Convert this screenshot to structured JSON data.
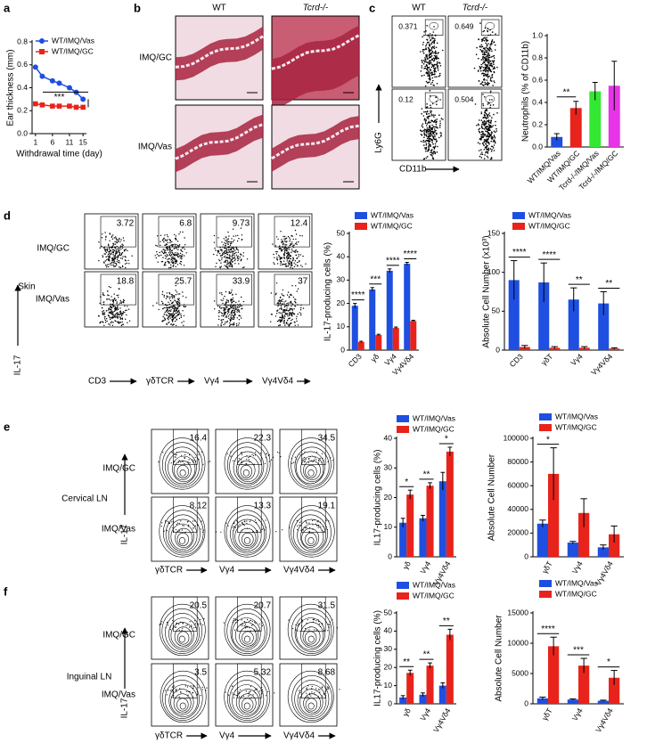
{
  "panel_labels": [
    "a",
    "b",
    "c",
    "d",
    "e",
    "f"
  ],
  "histology": {
    "columns": [
      "WT",
      "Tcrd-/-"
    ],
    "rows": [
      "IMQ/GC",
      "IMQ/Vas"
    ]
  },
  "flow_panels": [
    {
      "columns": [
        "WT",
        "Tcrd-/-"
      ],
      "x_label": "CD11b",
      "y_label": "Ly6G",
      "gates": [
        [
          0.371,
          0.649
        ],
        [
          0.12,
          0.504
        ]
      ]
    },
    {
      "tissue": "Skin",
      "rows": [
        "IMQ/GC",
        "IMQ/Vas"
      ],
      "x_labels": [
        "CD3",
        "γδTCR",
        "Vγ4",
        "Vγ4Vδ4"
      ],
      "y_label": "IL-17",
      "gates": [
        [
          3.72,
          6.8,
          9.73,
          12.4
        ],
        [
          18.8,
          25.7,
          33.9,
          37
        ]
      ]
    },
    {
      "tissue": "Cervical LN",
      "rows": [
        "IMQ/GC",
        "IMQ/Vas"
      ],
      "x_labels": [
        "γδTCR",
        "Vγ4",
        "Vγ4Vδ4"
      ],
      "y_label": "IL-17",
      "gates": [
        [
          16.4,
          22.3,
          34.5
        ],
        [
          8.12,
          13.3,
          19.1
        ]
      ]
    },
    {
      "tissue": "Inguinal LN",
      "rows": [
        "IMQ/GC",
        "IMQ/Vas"
      ],
      "x_labels": [
        "γδTCR",
        "Vγ4",
        "Vγ4Vδ4"
      ],
      "y_label": "IL-17",
      "gates": [
        [
          20.5,
          20.7,
          31.5
        ],
        [
          3.5,
          5.32,
          8.68
        ]
      ]
    }
  ],
  "chart_data": [
    {
      "type": "line",
      "y_label": "Ear thickness (mm)",
      "x_label": "Withdrawal time (day)",
      "x": [
        1,
        3,
        6,
        8,
        11,
        13,
        15
      ],
      "xlim": [
        0,
        16
      ],
      "xticks": [
        1,
        6,
        11,
        15
      ],
      "ylim": [
        0,
        0.8
      ],
      "yticks": [
        {
          "value": 0,
          "label": "0.0"
        },
        {
          "value": 0.2,
          "label": "0.2"
        },
        {
          "value": 0.4,
          "label": "0.4"
        },
        {
          "value": 0.6,
          "label": "0.6"
        },
        {
          "value": 0.8,
          "label": "0.8"
        }
      ],
      "series": [
        {
          "name": "WT/IMQ/Vas",
          "color": "#1f4fe0",
          "marker": "circle",
          "values": [
            0.58,
            0.5,
            0.46,
            0.44,
            0.4,
            0.36,
            0.3
          ]
        },
        {
          "name": "WT/IMQ/GC",
          "color": "#e8231b",
          "marker": "square",
          "values": [
            0.26,
            0.25,
            0.24,
            0.24,
            0.24,
            0.23,
            0.23
          ]
        }
      ],
      "annotation": "***"
    },
    {
      "type": "bar",
      "y_label": "Neutrophils (% of CD11b)",
      "categories": [
        "WT/IMQ/Vas",
        "WT/IMQ/GC",
        "Tcrd-/-/IMQ/Vas",
        "Tcrd-/-/IMQ/GC"
      ],
      "values": [
        0.09,
        0.35,
        0.5,
        0.55
      ],
      "errors": [
        0.03,
        0.06,
        0.08,
        0.22
      ],
      "colors": [
        "#1f4fe0",
        "#e8231b",
        "#33e833",
        "#e833e8"
      ],
      "ylim": [
        0,
        1
      ],
      "yticks": [
        {
          "value": 0,
          "label": "0.0"
        },
        {
          "value": 0.2,
          "label": "0.2"
        },
        {
          "value": 0.4,
          "label": "0.4"
        },
        {
          "value": 0.6,
          "label": "0.6"
        },
        {
          "value": 0.8,
          "label": "0.8"
        },
        {
          "value": 1,
          "label": "1.0"
        }
      ],
      "annotations": [
        null,
        "**",
        null,
        null
      ]
    },
    {
      "type": "grouped_bar",
      "y_label": "IL-17-producing cells (%)",
      "categories": [
        "CD3",
        "γδ",
        "Vγ4",
        "Vγ4Vδ4"
      ],
      "ylim": [
        0,
        50
      ],
      "yticks": [
        0,
        10,
        20,
        30,
        40,
        50
      ],
      "series": [
        {
          "name": "WT/IMQ/Vas",
          "color": "#1f4fe0",
          "values": [
            19,
            26,
            34,
            37
          ],
          "errors": [
            1,
            0.8,
            0.8,
            0.6
          ]
        },
        {
          "name": "WT/IMQ/GC",
          "color": "#e8231b",
          "values": [
            3.5,
            6.5,
            9.5,
            12.5
          ],
          "errors": [
            0.3,
            0.3,
            0.4,
            0.3
          ]
        }
      ],
      "annotations": [
        "****",
        "***",
        "****",
        "****"
      ]
    },
    {
      "type": "grouped_bar",
      "y_label": "Absolute Cell Number (x10³)",
      "categories": [
        "CD3",
        "γδT",
        "Vγ4",
        "Vγ4Vδ4"
      ],
      "ylim": [
        0,
        150
      ],
      "yticks": [
        0,
        50,
        100,
        150
      ],
      "series": [
        {
          "name": "WT/IMQ/Vas",
          "color": "#1f4fe0",
          "values": [
            90,
            87,
            65,
            60
          ],
          "errors": [
            25,
            25,
            15,
            15
          ]
        },
        {
          "name": "WT/IMQ/GC",
          "color": "#e8231b",
          "values": [
            4,
            3,
            3,
            2
          ],
          "errors": [
            2,
            1.5,
            1.5,
            1
          ]
        }
      ],
      "annotations": [
        "****",
        "****",
        "**",
        "**"
      ]
    },
    {
      "type": "grouped_bar",
      "y_label": "IL17-producing cells (%)",
      "categories": [
        "γδ",
        "Vγ4",
        "Vγ4Vδ4"
      ],
      "ylim": [
        0,
        40
      ],
      "yticks": [
        0,
        10,
        20,
        30,
        40
      ],
      "series": [
        {
          "name": "WT/IMQ/Vas",
          "color": "#1f4fe0",
          "values": [
            11.5,
            13,
            25.5
          ],
          "errors": [
            1.5,
            1,
            3
          ]
        },
        {
          "name": "WT/IMQ/GC",
          "color": "#e8231b",
          "values": [
            21,
            24,
            35.5
          ],
          "errors": [
            1.5,
            1,
            1.5
          ]
        }
      ],
      "annotations": [
        "*",
        "**",
        "*"
      ]
    },
    {
      "type": "grouped_bar",
      "y_label": "Absolute Cell Number",
      "categories": [
        "γδT",
        "Vγ4",
        "Vγ4Vδ4"
      ],
      "ylim": [
        0,
        100000
      ],
      "yticks": [
        0,
        20000,
        40000,
        60000,
        80000,
        100000
      ],
      "series": [
        {
          "name": "WT/IMQ/Vas",
          "color": "#1f4fe0",
          "values": [
            28000,
            12000,
            8000
          ],
          "errors": [
            3000,
            1000,
            2000
          ]
        },
        {
          "name": "WT/IMQ/GC",
          "color": "#e8231b",
          "values": [
            70000,
            37000,
            19000
          ],
          "errors": [
            22000,
            12000,
            7000
          ]
        }
      ],
      "annotations": [
        "*",
        null,
        null
      ]
    },
    {
      "type": "grouped_bar",
      "y_label": "IL17-producing cells (%)",
      "categories": [
        "γδ",
        "Vγ4",
        "Vγ4Vδ4"
      ],
      "ylim": [
        0,
        50
      ],
      "yticks": [
        0,
        10,
        20,
        30,
        40,
        50
      ],
      "series": [
        {
          "name": "WT/IMQ/Vas",
          "color": "#1f4fe0",
          "values": [
            3.5,
            5,
            10
          ],
          "errors": [
            1,
            1,
            1.5
          ]
        },
        {
          "name": "WT/IMQ/GC",
          "color": "#e8231b",
          "values": [
            17,
            21,
            38
          ],
          "errors": [
            1.5,
            1.5,
            3
          ]
        }
      ],
      "annotations": [
        "**",
        "**",
        "**"
      ]
    },
    {
      "type": "grouped_bar",
      "y_label": "Absolute Cell Number",
      "categories": [
        "γδT",
        "Vγ4",
        "Vγ4Vδ4"
      ],
      "ylim": [
        0,
        15000
      ],
      "yticks": [
        0,
        5000,
        10000,
        15000
      ],
      "series": [
        {
          "name": "WT/IMQ/Vas",
          "color": "#1f4fe0",
          "values": [
            900,
            700,
            500
          ],
          "errors": [
            200,
            100,
            100
          ]
        },
        {
          "name": "WT/IMQ/GC",
          "color": "#e8231b",
          "values": [
            9500,
            6300,
            4300
          ],
          "errors": [
            1500,
            1200,
            1200
          ]
        }
      ],
      "annotations": [
        "****",
        "***",
        "*"
      ]
    }
  ]
}
